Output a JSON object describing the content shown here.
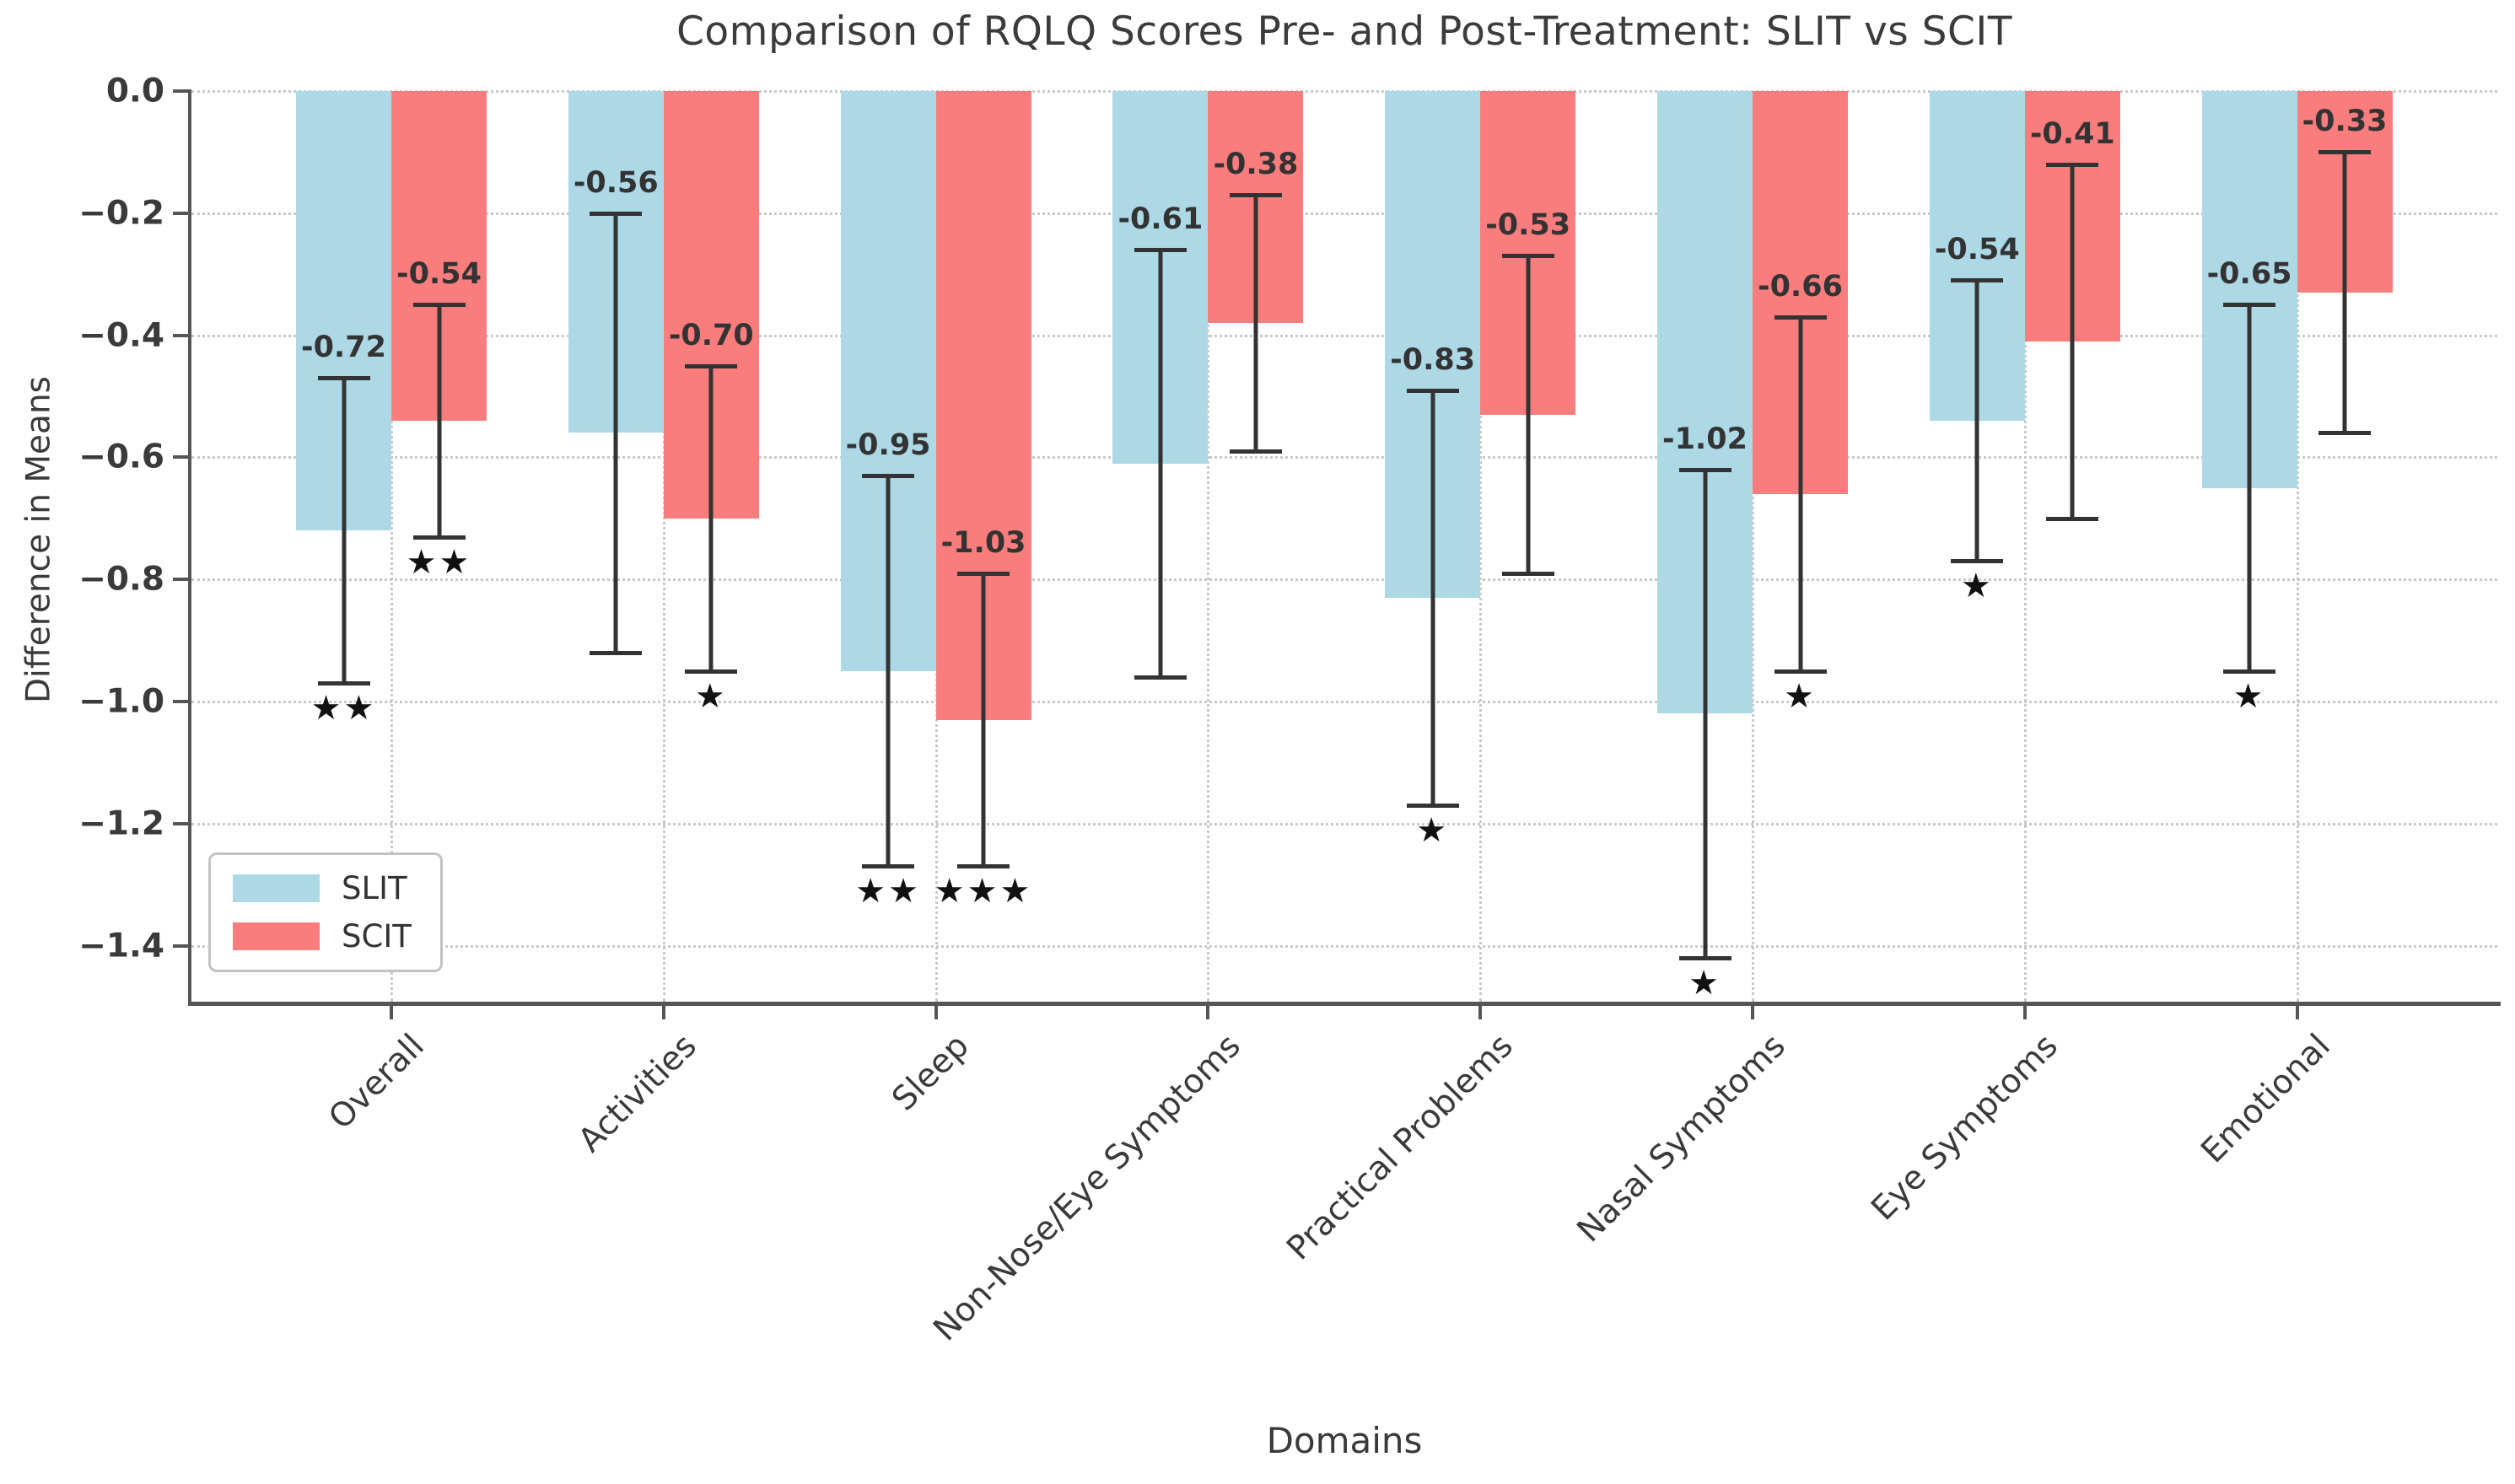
{
  "chart_data": {
    "type": "bar",
    "title": "Comparison of RQLQ Scores Pre- and Post-Treatment: SLIT vs SCIT",
    "xlabel": "Domains",
    "ylabel": "Difference in Means",
    "categories": [
      "Overall",
      "Activities",
      "Sleep",
      "Non-Nose/Eye Symptoms",
      "Practical Problems",
      "Nasal Symptoms",
      "Eye Symptoms",
      "Emotional"
    ],
    "series": [
      {
        "name": "SLIT",
        "color": "#ADD8E6",
        "values": [
          -0.72,
          -0.56,
          -0.95,
          -0.61,
          -0.83,
          -1.02,
          -0.54,
          -0.65
        ],
        "error_upper": [
          -0.47,
          -0.2,
          -0.63,
          -0.26,
          -0.49,
          -0.62,
          -0.31,
          -0.35
        ],
        "error_lower": [
          -0.97,
          -0.92,
          -1.27,
          -0.96,
          -1.17,
          -1.42,
          -0.77,
          -0.95
        ],
        "significance": [
          "★★",
          "",
          "★★",
          "",
          "★",
          "★",
          "★",
          "★"
        ]
      },
      {
        "name": "SCIT",
        "color": "#FA7D7D",
        "values": [
          -0.54,
          -0.7,
          -1.03,
          -0.38,
          -0.53,
          -0.66,
          -0.41,
          -0.33
        ],
        "error_upper": [
          -0.35,
          -0.45,
          -0.79,
          -0.17,
          -0.27,
          -0.37,
          -0.12,
          -0.1
        ],
        "error_lower": [
          -0.73,
          -0.95,
          -1.27,
          -0.59,
          -0.79,
          -0.95,
          -0.7,
          -0.56
        ],
        "significance": [
          "★★",
          "★",
          "★★★",
          "",
          "",
          "★",
          "",
          ""
        ]
      }
    ],
    "y_ticks": [
      0.0,
      -0.2,
      -0.4,
      -0.6,
      -0.8,
      -1.0,
      -1.2,
      -1.4
    ],
    "y_tick_labels": [
      "0.0",
      "−0.2",
      "−0.4",
      "−0.6",
      "−0.8",
      "−1.0",
      "−1.2",
      "−1.4"
    ],
    "ylim": [
      0.0,
      -1.49
    ],
    "grid": {
      "horizontal": "dotted",
      "vertical": "dotted"
    },
    "legend": {
      "position": "lower left",
      "entries": [
        "SLIT",
        "SCIT"
      ]
    }
  }
}
